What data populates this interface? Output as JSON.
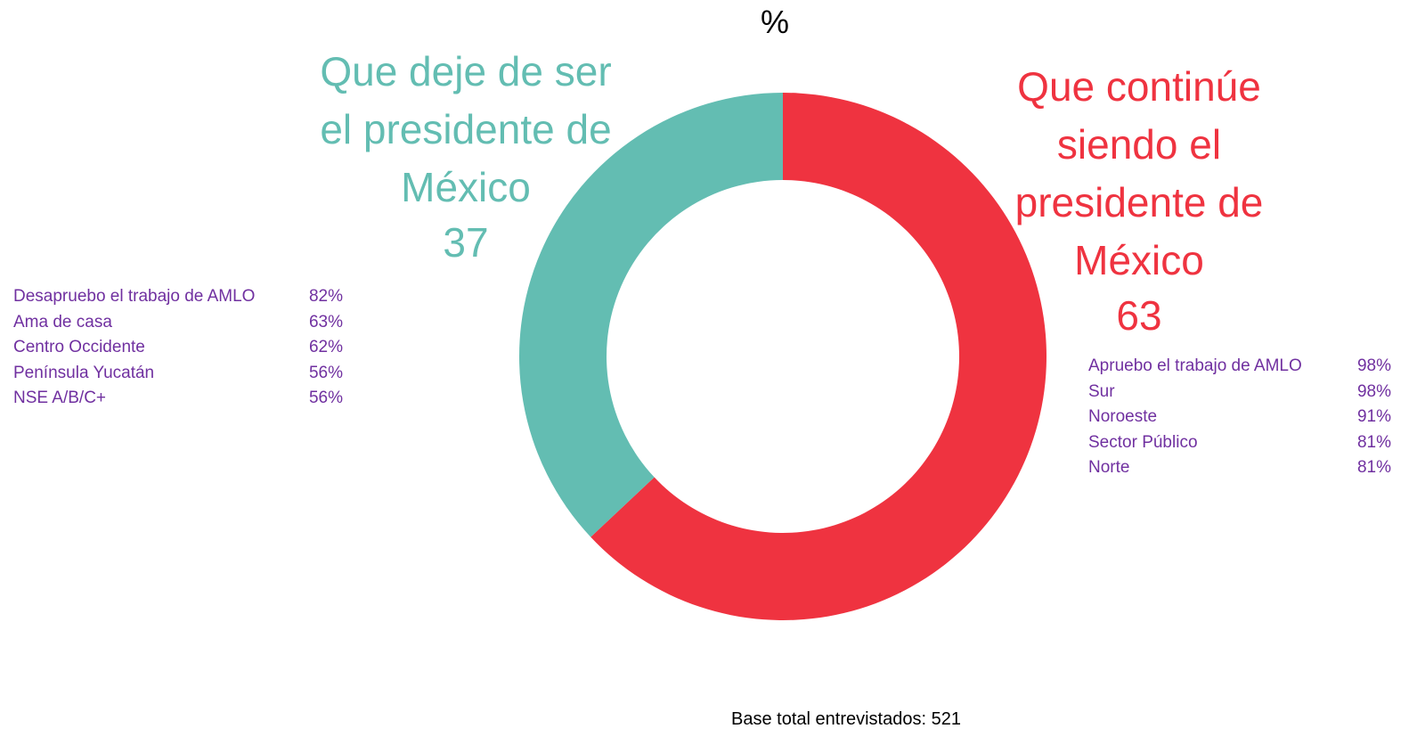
{
  "chart_data": {
    "type": "donut",
    "title": "%",
    "categories": [
      "Que continúe siendo el presidente de México",
      "Que deje de ser el presidente de México"
    ],
    "values": [
      63,
      37
    ],
    "colors": [
      "#ef3340",
      "#63bdb2"
    ],
    "left_list": [
      {
        "label": "Desapruebo el trabajo de AMLO",
        "value": "82%"
      },
      {
        "label": "Ama de casa",
        "value": "63%"
      },
      {
        "label": "Centro Occidente",
        "value": "62%"
      },
      {
        "label": "Península Yucatán",
        "value": "56%"
      },
      {
        "label": "NSE A/B/C+",
        "value": "56%"
      }
    ],
    "right_list": [
      {
        "label": "Apruebo el trabajo de AMLO",
        "value": "98%"
      },
      {
        "label": "Sur",
        "value": "98%"
      },
      {
        "label": "Noroeste",
        "value": "91%"
      },
      {
        "label": "Sector Público",
        "value": "81%"
      },
      {
        "label": "Norte",
        "value": "81%"
      }
    ],
    "footnote": "Base total entrevistados: 521"
  }
}
